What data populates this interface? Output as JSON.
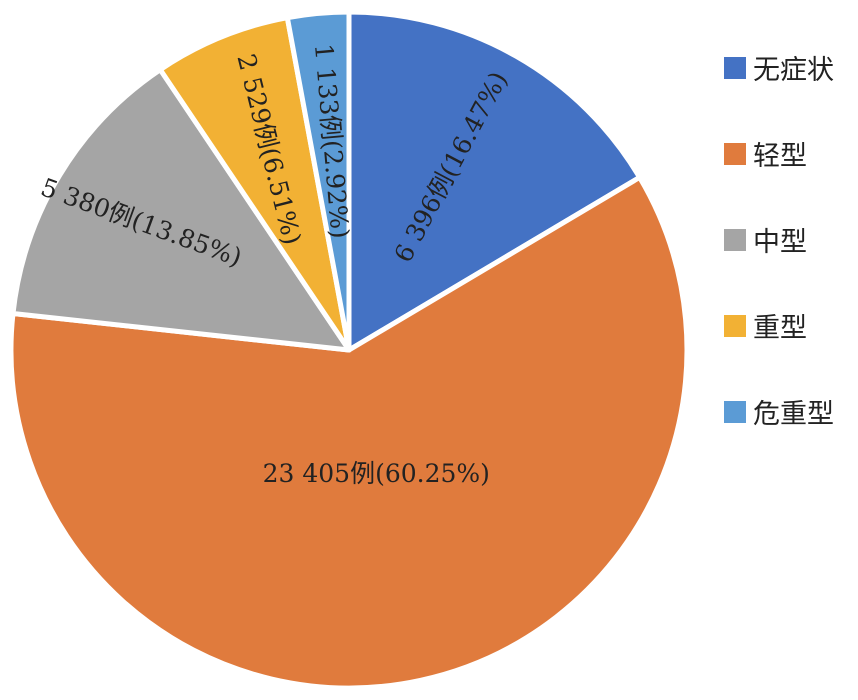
{
  "chart_data": {
    "type": "pie",
    "start_angle_deg": 90,
    "direction": "clockwise",
    "slices": [
      {
        "category": "无症状",
        "count": 6396,
        "percent": 16.47,
        "label": "6 396例(16.47%)",
        "color": "#4472C4"
      },
      {
        "category": "轻型",
        "count": 23405,
        "percent": 60.25,
        "label": "23 405例(60.25%)",
        "color": "#E07B3D"
      },
      {
        "category": "中型",
        "count": 5380,
        "percent": 13.85,
        "label": "5 380例(13.85%)",
        "color": "#A5A5A5"
      },
      {
        "category": "重型",
        "count": 2529,
        "percent": 6.51,
        "label": "2 529例(6.51%)",
        "color": "#F2B134"
      },
      {
        "category": "危重型",
        "count": 1133,
        "percent": 2.92,
        "label": "1 133例(2.92%)",
        "color": "#5B9BD5"
      }
    ],
    "legend": {
      "position": "right",
      "items": [
        {
          "label": "无症状",
          "color": "#4472C4"
        },
        {
          "label": "轻型",
          "color": "#E07B3D"
        },
        {
          "label": "中型",
          "color": "#A5A5A5"
        },
        {
          "label": "重型",
          "color": "#F2B134"
        },
        {
          "label": "危重型",
          "color": "#5B9BD5"
        }
      ]
    }
  }
}
